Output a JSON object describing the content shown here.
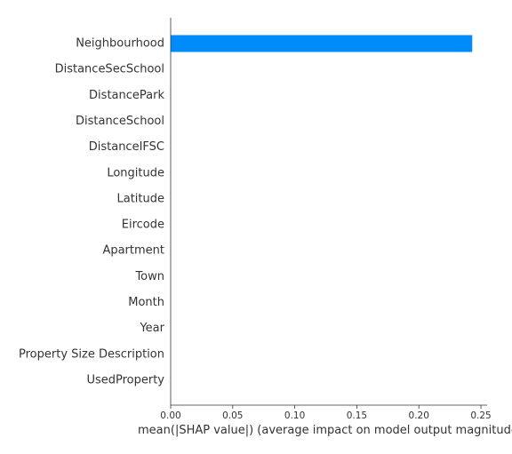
{
  "chart_data": {
    "type": "bar",
    "orientation": "horizontal",
    "categories": [
      "Neighbourhood",
      "DistanceSecSchool",
      "DistancePark",
      "DistanceSchool",
      "DistanceIFSC",
      "Longitude",
      "Latitude",
      "Eircode",
      "Apartment",
      "Town",
      "Month",
      "Year",
      "Property Size Description",
      "UsedProperty"
    ],
    "values": [
      0.243,
      0,
      0,
      0,
      0,
      0,
      0,
      0,
      0,
      0,
      0,
      0,
      0,
      0
    ],
    "xlabel": "mean(|SHAP value|) (average impact on model output magnitude)",
    "ylabel": "",
    "xlim": [
      0,
      0.255
    ],
    "xticks": [
      0.0,
      0.05,
      0.1,
      0.15,
      0.2,
      0.25
    ],
    "xtick_labels": [
      "0.00",
      "0.05",
      "0.10",
      "0.15",
      "0.20",
      "0.25"
    ],
    "bar_color": "#008bfb",
    "grid": false
  }
}
